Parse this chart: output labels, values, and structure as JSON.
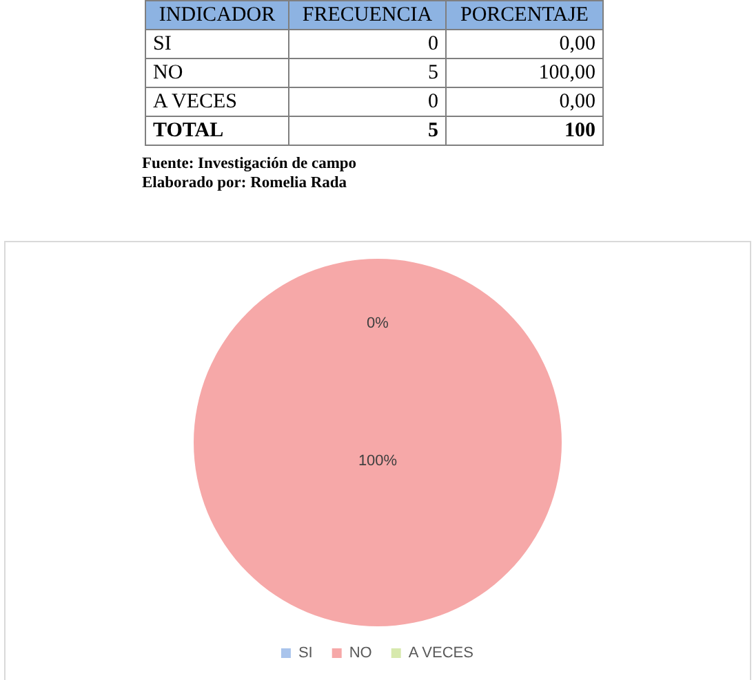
{
  "chart_data": [
    {
      "type": "other",
      "xlabel": "INDICADOR",
      "categories": [
        "SI",
        "NO",
        "A VECES",
        "TOTAL"
      ],
      "series": [
        {
          "name": "FRECUENCIA",
          "values": [
            0,
            5,
            0,
            5
          ],
          "value_labels": [
            "0",
            "5",
            "0",
            "5"
          ]
        },
        {
          "name": "PORCENTAJE",
          "values": [
            0,
            100,
            0,
            100
          ],
          "value_labels": [
            "0,00",
            "100,00",
            "0,00",
            "100"
          ]
        }
      ],
      "annotations": [
        "Fuente: Investigación de campo",
        "Elaborado por: Romelia Rada"
      ]
    },
    {
      "type": "pie",
      "categories": [
        "SI",
        "NO",
        "A VECES"
      ],
      "values": [
        0,
        100,
        0
      ],
      "colors": [
        "#a9c4ec",
        "#f6a8a8",
        "#d7e9ad"
      ],
      "value_labels": [
        "0%",
        "100%",
        null
      ],
      "legend": "bottom"
    }
  ]
}
